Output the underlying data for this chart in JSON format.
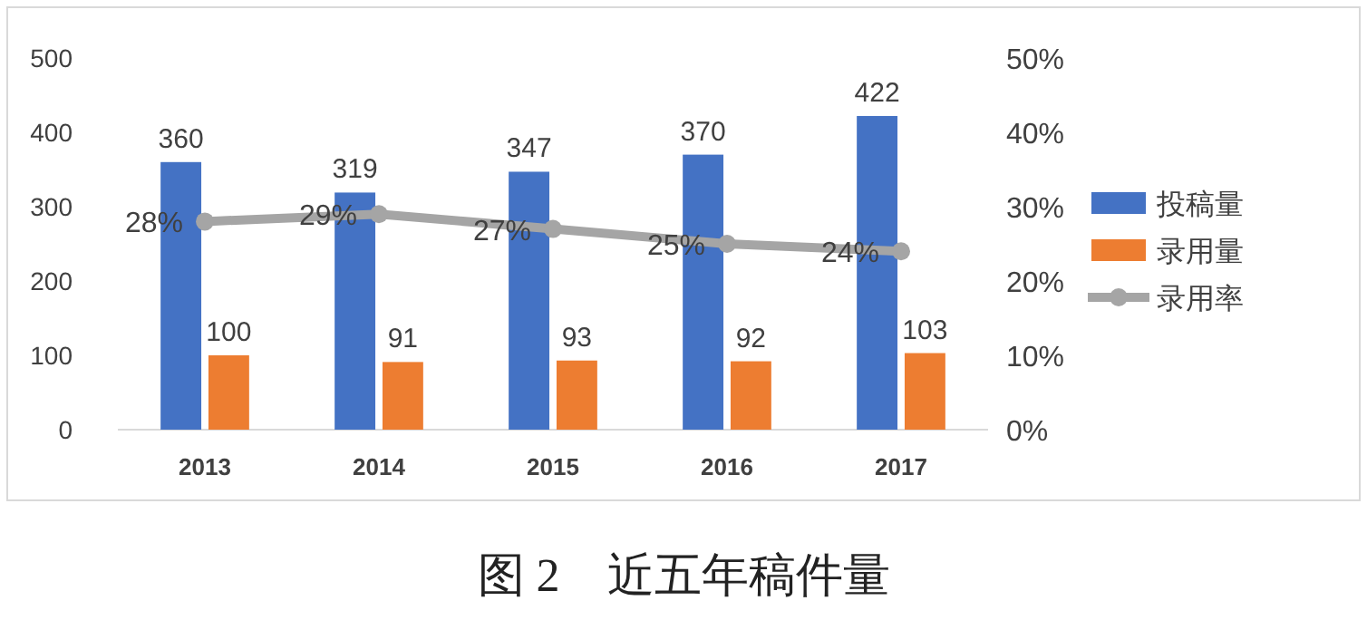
{
  "chart_data": {
    "type": "bar",
    "title": "图 2　近五年稿件量",
    "categories": [
      "2013",
      "2014",
      "2015",
      "2016",
      "2017"
    ],
    "series": [
      {
        "name": "投稿量",
        "color": "#4472c4",
        "values": [
          360,
          319,
          347,
          370,
          422
        ]
      },
      {
        "name": "录用量",
        "color": "#ed7d31",
        "values": [
          100,
          91,
          93,
          92,
          103
        ]
      },
      {
        "name": "录用率",
        "type": "line",
        "axis": "y2",
        "color": "#a5a5a5",
        "marker": "circle",
        "values": [
          28,
          29,
          27,
          25,
          24
        ],
        "value_labels": [
          "28%",
          "29%",
          "27%",
          "25%",
          "24%"
        ]
      }
    ],
    "ylim": [
      0,
      500
    ],
    "yticks": [
      0,
      100,
      200,
      300,
      400,
      500
    ],
    "y2lim": [
      0,
      50
    ],
    "y2ticks": [
      {
        "value": 0,
        "label": "0%"
      },
      {
        "value": 10,
        "label": "10%"
      },
      {
        "value": 20,
        "label": "20%"
      },
      {
        "value": 30,
        "label": "30%"
      },
      {
        "value": 40,
        "label": "40%"
      },
      {
        "value": 50,
        "label": "50%"
      }
    ],
    "data_labels": true,
    "legend": "right"
  }
}
